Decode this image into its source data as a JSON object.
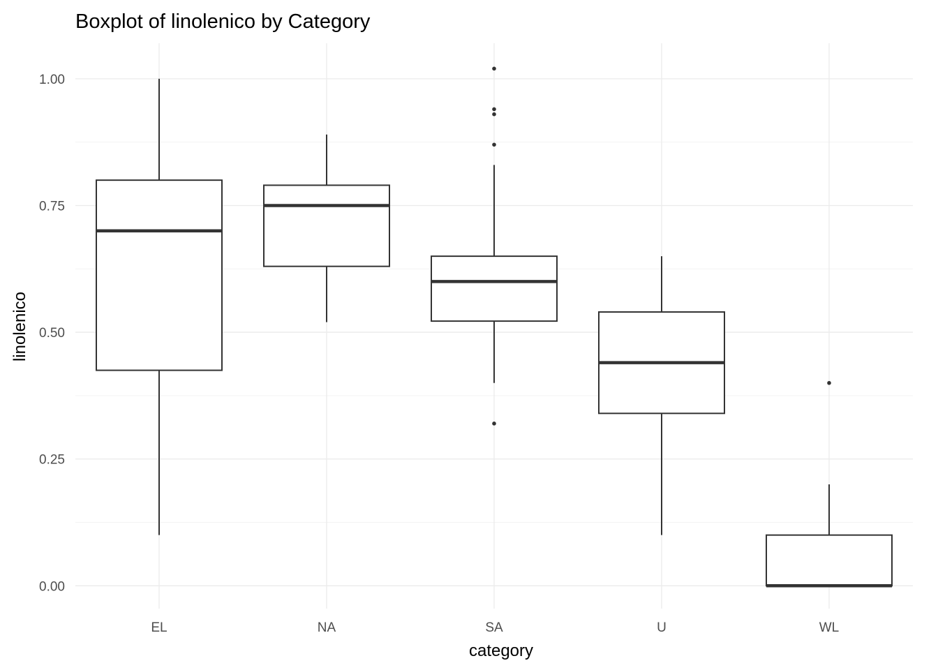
{
  "chart_data": {
    "type": "box",
    "title": "Boxplot of linolenico by Category",
    "xlabel": "category",
    "ylabel": "linolenico",
    "ylim": [
      -0.045,
      1.07
    ],
    "y_ticks": [
      0.0,
      0.25,
      0.5,
      0.75,
      1.0
    ],
    "y_tick_labels": [
      "0.00",
      "0.25",
      "0.50",
      "0.75",
      "1.00"
    ],
    "grid": true,
    "legend": "none",
    "categories": [
      "EL",
      "NA",
      "SA",
      "U",
      "WL"
    ],
    "boxes": [
      {
        "category": "EL",
        "whisker_low": 0.1,
        "q1": 0.425,
        "median": 0.7,
        "q3": 0.8,
        "whisker_high": 1.0,
        "outliers": []
      },
      {
        "category": "NA",
        "whisker_low": 0.52,
        "q1": 0.63,
        "median": 0.75,
        "q3": 0.79,
        "whisker_high": 0.89,
        "outliers": []
      },
      {
        "category": "SA",
        "whisker_low": 0.4,
        "q1": 0.522,
        "median": 0.6,
        "q3": 0.65,
        "whisker_high": 0.83,
        "outliers": [
          0.32,
          0.87,
          0.93,
          0.94,
          1.02
        ]
      },
      {
        "category": "U",
        "whisker_low": 0.1,
        "q1": 0.34,
        "median": 0.44,
        "q3": 0.54,
        "whisker_high": 0.65,
        "outliers": []
      },
      {
        "category": "WL",
        "whisker_low": 0.0,
        "q1": 0.0,
        "median": 0.0,
        "q3": 0.1,
        "whisker_high": 0.2,
        "outliers": [
          0.4
        ]
      }
    ]
  }
}
